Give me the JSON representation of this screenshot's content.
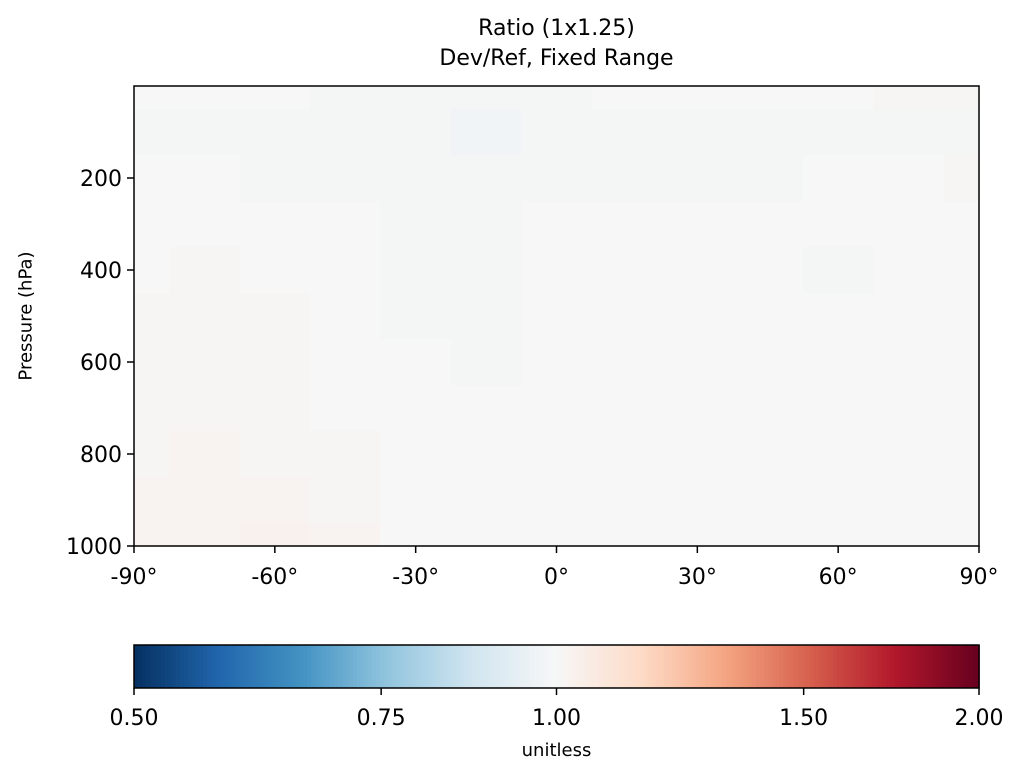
{
  "chart_data": {
    "type": "heatmap",
    "title": "Ratio (1x1.25)",
    "subtitle": "Dev/Ref, Fixed Range",
    "xlabel": "",
    "ylabel": "Pressure (hPa)",
    "xlim": [
      -90,
      90
    ],
    "ylim": [
      1000,
      0
    ],
    "y_inverted": true,
    "x_ticks": [
      -90,
      -60,
      -30,
      0,
      30,
      60,
      90
    ],
    "x_tick_labels": [
      "-90°",
      "-60°",
      "-30°",
      "0°",
      "30°",
      "60°",
      "90°"
    ],
    "y_ticks": [
      200,
      400,
      600,
      800,
      1000
    ],
    "y_tick_labels": [
      "200",
      "400",
      "600",
      "800",
      "1000"
    ],
    "latitudes": [
      -90,
      -75,
      -60,
      -45,
      -30,
      -15,
      0,
      15,
      30,
      45,
      60,
      75,
      90
    ],
    "pressures": [
      0,
      100,
      200,
      300,
      400,
      500,
      600,
      700,
      800,
      900,
      1000
    ],
    "values": [
      [
        1.0,
        1.0,
        1.0,
        0.99,
        0.99,
        0.99,
        0.99,
        1.0,
        1.0,
        1.0,
        1.0,
        1.01,
        1.01
      ],
      [
        0.99,
        0.99,
        0.99,
        0.99,
        0.99,
        0.98,
        0.99,
        0.99,
        0.99,
        0.99,
        0.99,
        0.99,
        0.99
      ],
      [
        1.0,
        1.0,
        0.99,
        0.99,
        0.99,
        0.99,
        0.99,
        0.99,
        0.99,
        0.99,
        1.0,
        1.0,
        1.01
      ],
      [
        1.0,
        1.0,
        1.0,
        1.0,
        0.99,
        0.99,
        1.0,
        1.0,
        1.0,
        1.0,
        1.0,
        1.0,
        1.0
      ],
      [
        1.0,
        1.01,
        1.0,
        1.0,
        0.99,
        0.99,
        1.0,
        1.0,
        1.0,
        1.0,
        0.99,
        1.0,
        1.0
      ],
      [
        1.01,
        1.01,
        1.01,
        1.0,
        0.99,
        0.99,
        1.0,
        1.0,
        1.0,
        1.0,
        1.0,
        1.0,
        1.0
      ],
      [
        1.01,
        1.01,
        1.01,
        1.0,
        1.0,
        0.99,
        1.0,
        1.0,
        1.0,
        1.0,
        1.0,
        1.0,
        1.0
      ],
      [
        1.01,
        1.01,
        1.01,
        1.0,
        1.0,
        1.0,
        1.0,
        1.0,
        1.0,
        1.0,
        1.0,
        1.0,
        1.0
      ],
      [
        1.01,
        1.02,
        1.01,
        1.01,
        1.0,
        1.0,
        1.0,
        1.0,
        1.0,
        1.0,
        1.0,
        1.0,
        1.0
      ],
      [
        1.02,
        1.02,
        1.02,
        1.01,
        1.0,
        1.0,
        1.0,
        1.0,
        1.0,
        1.0,
        1.0,
        1.0,
        1.0
      ],
      [
        1.02,
        1.02,
        1.03,
        1.02,
        1.0,
        1.0,
        1.0,
        1.0,
        1.0,
        1.0,
        1.0,
        1.0,
        1.0
      ]
    ],
    "colorbar": {
      "label": "unitless",
      "scale": "log",
      "vmin": 0.5,
      "vmax": 2.0,
      "ticks": [
        0.5,
        0.75,
        1.0,
        1.5,
        2.0
      ],
      "tick_labels": [
        "0.50",
        "0.75",
        "1.00",
        "1.50",
        "2.00"
      ],
      "colormap": "RdBu_r",
      "colormap_stops": [
        "#053061",
        "#2166ac",
        "#4393c3",
        "#92c5de",
        "#d1e5f0",
        "#f7f7f7",
        "#fddbc7",
        "#f4a582",
        "#d6604d",
        "#b2182b",
        "#67001f"
      ],
      "orientation": "horizontal",
      "placement": "bottom"
    },
    "grid": false
  }
}
